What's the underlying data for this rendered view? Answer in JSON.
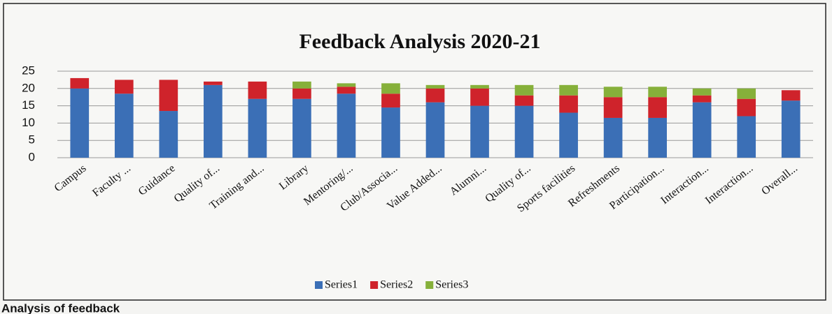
{
  "chart_data": {
    "type": "stacked_bar",
    "title": "Feedback Analysis 2020-21",
    "categories": [
      "Campus",
      "Faculty ...",
      "Guidance",
      "Quality of...",
      "Training and...",
      "Library",
      "Mentoring/...",
      "Club/Associa...",
      "Value Added...",
      "Alumni...",
      "Quality of...",
      "Sports facilities",
      "Refreshments",
      "Participation...",
      "Interaction...",
      "Interaction...",
      "Overall..."
    ],
    "series": [
      {
        "name": "Series1",
        "color": "#3b6fb6",
        "values": [
          20,
          18.5,
          13.5,
          21,
          17,
          17,
          18.5,
          14.5,
          16,
          15,
          15,
          13,
          11.5,
          11.5,
          16,
          12,
          16.5
        ]
      },
      {
        "name": "Series2",
        "color": "#cf232b",
        "values": [
          3,
          4,
          9,
          1,
          5,
          3,
          2,
          4,
          4,
          5,
          3,
          5,
          6,
          6,
          2,
          5,
          3
        ]
      },
      {
        "name": "Series3",
        "color": "#86b03a",
        "values": [
          0,
          0,
          0,
          0,
          0,
          2,
          1,
          3,
          1,
          1,
          3,
          3,
          3,
          3,
          2,
          3,
          0
        ]
      }
    ],
    "ylim": [
      0,
      25
    ],
    "yticks": [
      0,
      5,
      10,
      15,
      20,
      25
    ],
    "grid": true,
    "legend": "bottom",
    "caption": "Analysis of feedback"
  }
}
